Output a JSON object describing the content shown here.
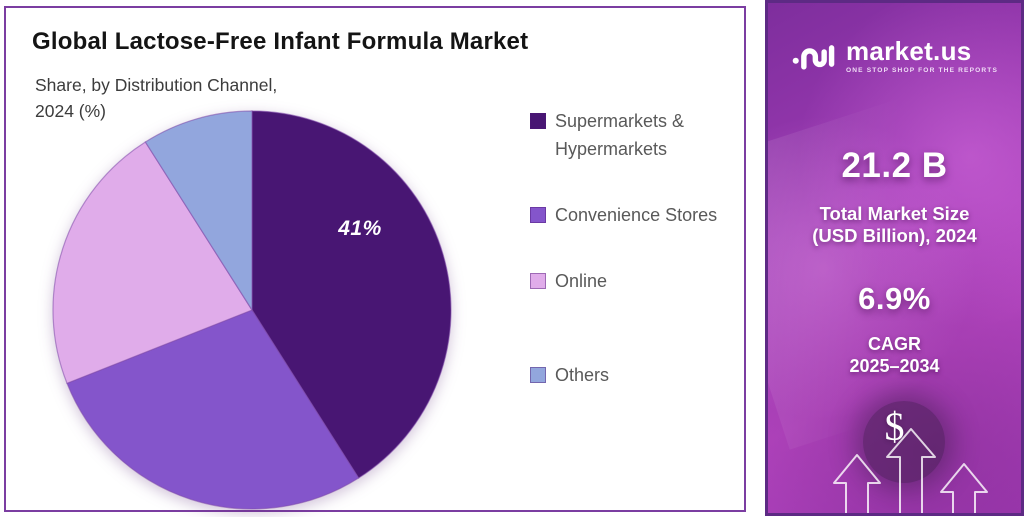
{
  "title": "Global Lactose-Free Infant Formula Market",
  "subtitle_line1": "Share, by Distribution Channel,",
  "subtitle_line2": "2024 (%)",
  "chart_data": {
    "type": "pie",
    "title": "Global Lactose-Free Infant Formula Market",
    "subtitle": "Share, by Distribution Channel, 2024 (%)",
    "unit": "percent share",
    "start_angle_deg": 0,
    "direction": "clockwise",
    "legend_position": "right",
    "slices": [
      {
        "label": "Supermarkets & Hypermarkets",
        "value": 41,
        "color": "#481673",
        "data_label": "41%"
      },
      {
        "label": "Convenience Stores",
        "value": 28,
        "color": "#8455cb",
        "data_label": ""
      },
      {
        "label": "Online",
        "value": 22,
        "color": "#e0acea",
        "data_label": ""
      },
      {
        "label": "Others",
        "value": 9,
        "color": "#92a6dd",
        "data_label": ""
      }
    ]
  },
  "pie_shown_label": "41%",
  "panel": {
    "logo_name": "market.us",
    "logo_tagline": "ONE STOP SHOP FOR THE REPORTS",
    "market_size_value": "21.2 B",
    "market_size_label_line1": "Total Market Size",
    "market_size_label_line2": "(USD Billion), 2024",
    "cagr_value": "6.9%",
    "cagr_label_line1": "CAGR",
    "cagr_label_line2": "2025–2034",
    "dollar_symbol": "$"
  },
  "colors": {
    "card_border": "#7b3da1",
    "panel_border": "#5d2a84",
    "panel_gradient_start": "#7e2e9d",
    "panel_gradient_end": "#b847c4",
    "legend_text": "#595959",
    "title_text": "#141414"
  }
}
